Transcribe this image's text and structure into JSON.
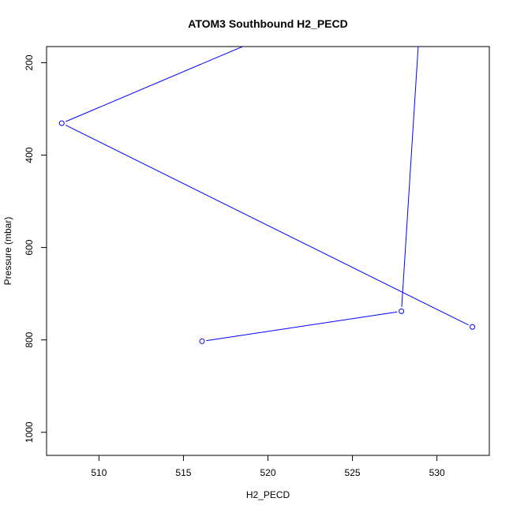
{
  "chart_data": {
    "type": "line",
    "title": "ATOM3 Southbound H2_PECD",
    "xlabel": "H2_PECD",
    "ylabel": "Pressure (mbar)",
    "xlim": [
      506.9,
      533.1
    ],
    "ylim": [
      1050,
      165
    ],
    "y_reversed": true,
    "x_ticks": [
      510,
      515,
      520,
      525,
      530
    ],
    "y_ticks": [
      200,
      400,
      600,
      800,
      1000
    ],
    "series": [
      {
        "color": "#0000ff",
        "marker": "open-circle",
        "points": [
          {
            "x": 516.1,
            "y": 803,
            "marker": true
          },
          {
            "x": 527.9,
            "y": 738,
            "marker": true
          },
          {
            "x": 528.9,
            "y": 160,
            "marker": false
          }
        ]
      },
      {
        "color": "#0000ff",
        "marker": "open-circle",
        "points": [
          {
            "x": 518.5,
            "y": 165,
            "marker": false
          },
          {
            "x": 507.8,
            "y": 331,
            "marker": true
          },
          {
            "x": 532.1,
            "y": 772,
            "marker": true
          }
        ]
      }
    ],
    "grid": false,
    "legend": "none"
  }
}
